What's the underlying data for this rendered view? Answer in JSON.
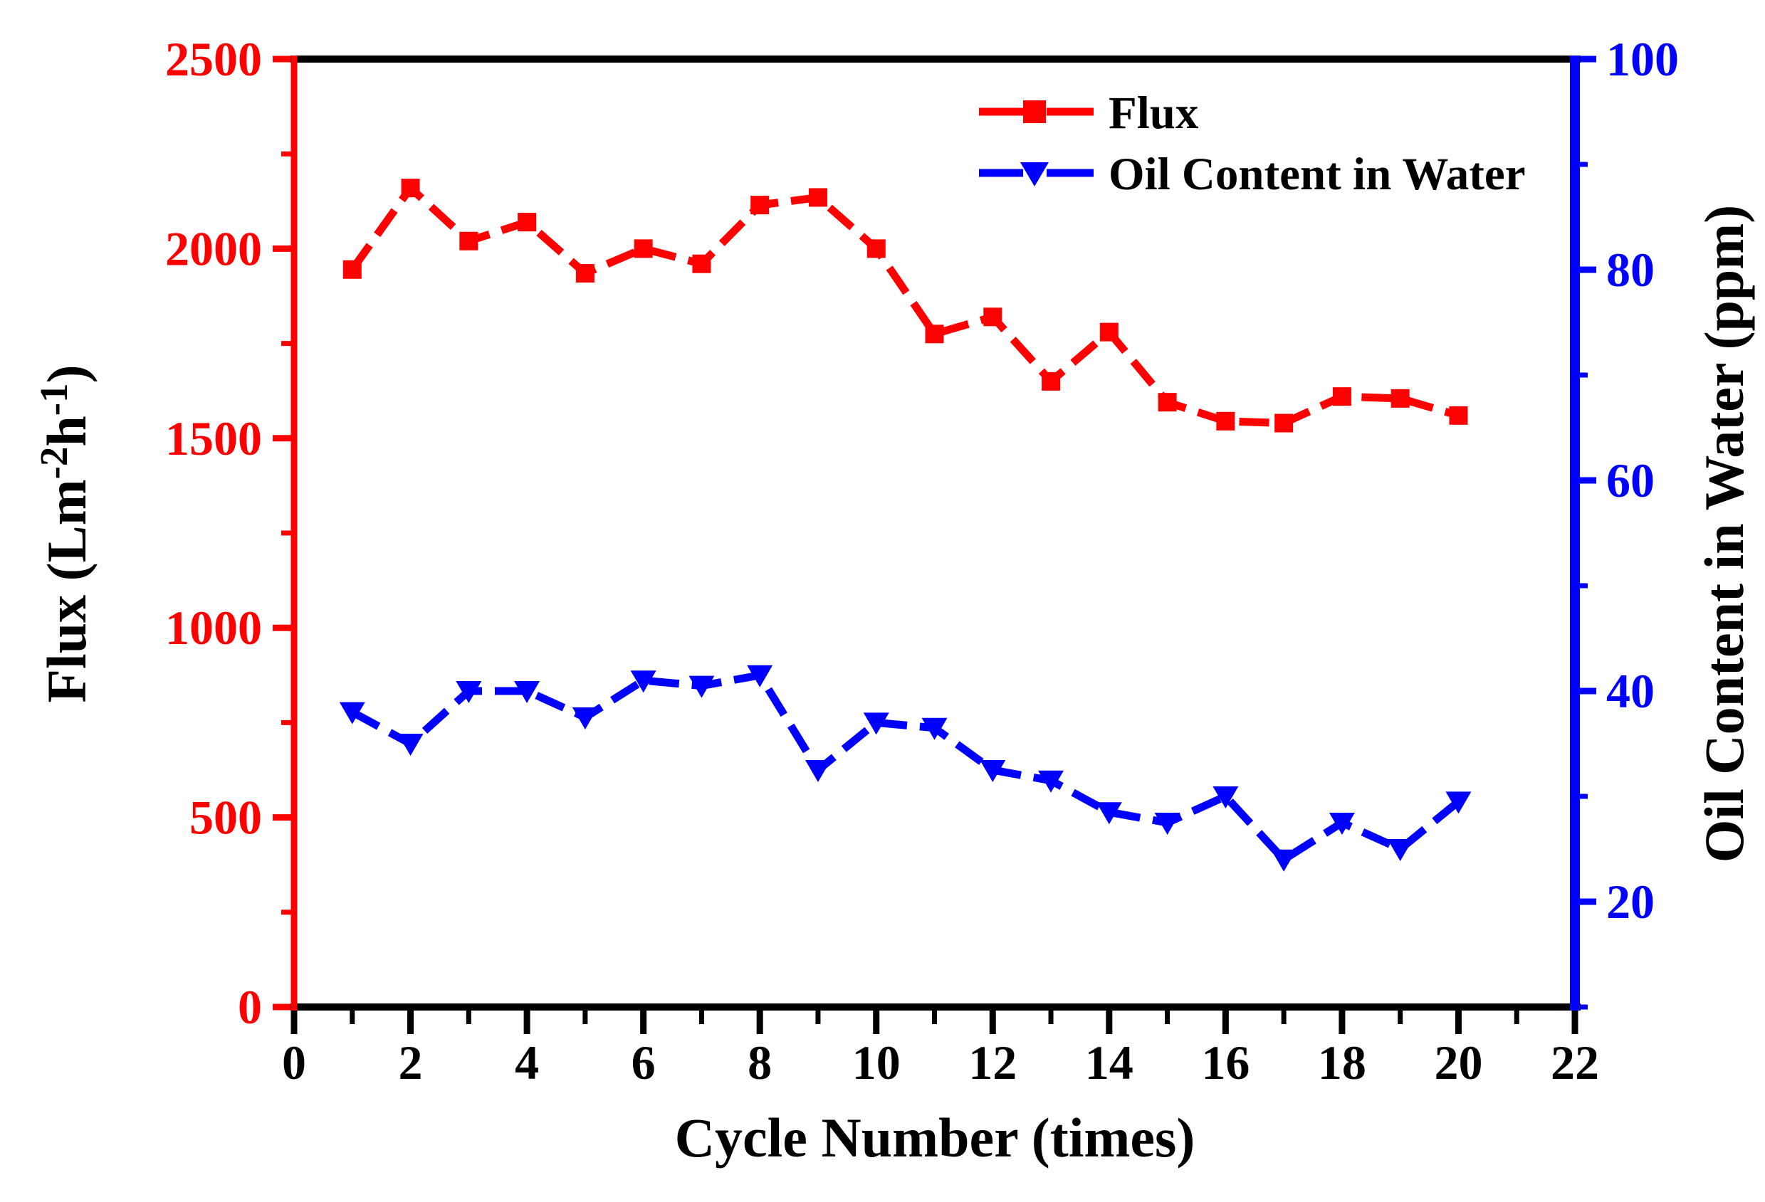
{
  "chart_data": {
    "type": "line",
    "title": "",
    "x": [
      1,
      2,
      3,
      4,
      5,
      6,
      7,
      8,
      9,
      10,
      11,
      12,
      13,
      14,
      15,
      16,
      17,
      18,
      19,
      20
    ],
    "series": [
      {
        "name": "Flux",
        "axis": "left",
        "color": "#ff0000",
        "marker": "square",
        "line_style": "dashed",
        "values": [
          1945,
          2160,
          2020,
          2070,
          1935,
          2000,
          1960,
          2115,
          2135,
          2000,
          1775,
          1820,
          1650,
          1780,
          1595,
          1545,
          1540,
          1610,
          1605,
          1560
        ]
      },
      {
        "name": "Oil Content in Water",
        "axis": "right",
        "color": "#0000ff",
        "marker": "triangle-down",
        "line_style": "dashed",
        "values": [
          38,
          35,
          40,
          40,
          37.5,
          41,
          40.5,
          41.5,
          32.5,
          37,
          36.5,
          32.5,
          31.5,
          28.5,
          27.5,
          30,
          24,
          27.5,
          25,
          29.5
        ]
      }
    ],
    "x_axis": {
      "label": "Cycle Number (times)",
      "min": 0,
      "max": 22,
      "major_step": 2,
      "minor_step": 1,
      "color": "#000000",
      "tick_labels": [
        "0",
        "2",
        "4",
        "6",
        "8",
        "10",
        "12",
        "14",
        "16",
        "18",
        "20",
        "22"
      ]
    },
    "left_axis": {
      "label": "Flux (Lm⁻²h⁻¹)",
      "label_parts": [
        {
          "text": "Flux (Lm"
        },
        {
          "text": "-2",
          "sup": true
        },
        {
          "text": "h"
        },
        {
          "text": "-1",
          "sup": true
        },
        {
          "text": ")"
        }
      ],
      "min": 0,
      "max": 2500,
      "major_step": 500,
      "minor_step": 250,
      "color": "#ff0000",
      "tick_labels": [
        "0",
        "500",
        "1000",
        "1500",
        "2000",
        "2500"
      ]
    },
    "right_axis": {
      "label": "Oil Content in Water (ppm)",
      "min": 10,
      "max": 100,
      "major_step": 20,
      "minor_step": 10,
      "color": "#0000ff",
      "tick_labels": [
        "20",
        "40",
        "60",
        "80",
        "100"
      ]
    },
    "legend": {
      "position": "upper-middle",
      "items": [
        "Flux",
        "Oil Content in Water"
      ]
    },
    "grid": "off",
    "background": "#ffffff",
    "frame_color": "#000000"
  }
}
